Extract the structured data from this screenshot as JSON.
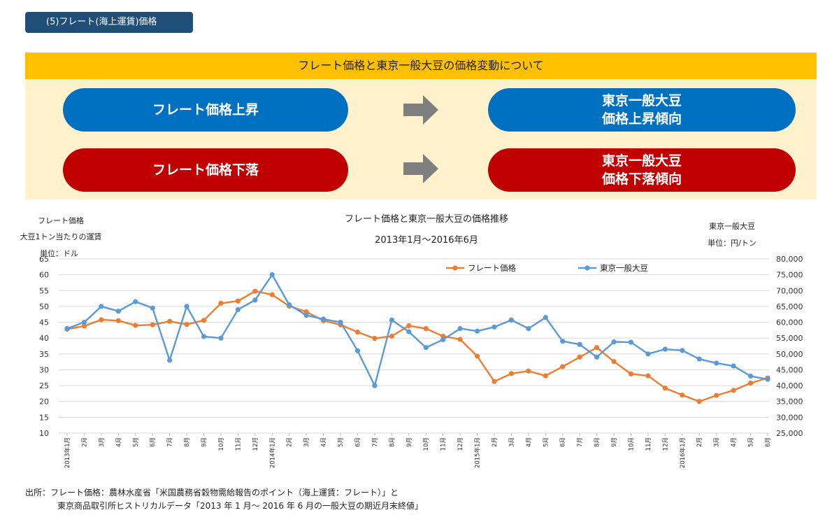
{
  "section_label": "(5)フレート(海上運賃)価格",
  "banner_title": "フレート価格と東京一般大豆の価格変動について",
  "rows": [
    {
      "left": "フレート価格上昇",
      "right1": "東京一般大豆",
      "right2": "価格上昇傾向",
      "color": "#0070c0"
    },
    {
      "left": "フレート価格下落",
      "right1": "東京一般大豆",
      "right2": "価格下落傾向",
      "color": "#c00000"
    }
  ],
  "arrow_icon": "right-arrow-icon",
  "left_axis_header": [
    "フレート価格",
    "大豆1トン当たりの運賃",
    "単位：ドル"
  ],
  "right_axis_header": [
    "東京一般大豆",
    "単位：円/トン"
  ],
  "source_lines": [
    "出所：フレート価格：農林水産省「米国農務省穀物需給報告のポイント（海上運賃：フレート）」と",
    "東京商品取引所ヒストリカルデータ「2013 年 1 月～ 2016 年 6 月の一般大豆の期近月末終値」"
  ],
  "chart_data": {
    "type": "line",
    "title": "フレート価格と東京一般大豆の価格推移",
    "subtitle": "2013年1月～2016年6月",
    "categories": [
      "2013年1月",
      "2月",
      "3月",
      "4月",
      "5月",
      "6月",
      "7月",
      "8月",
      "9月",
      "10月",
      "11月",
      "12月",
      "2014年1月",
      "2月",
      "3月",
      "4月",
      "5月",
      "6月",
      "7月",
      "8月",
      "9月",
      "10月",
      "11月",
      "12月",
      "2015年1月",
      "2月",
      "3月",
      "4月",
      "5月",
      "6月",
      "7月",
      "8月",
      "9月",
      "10月",
      "11月",
      "12月",
      "2016年1月",
      "2月",
      "3月",
      "4月",
      "5月",
      "6月"
    ],
    "y_left": {
      "min": 10,
      "max": 65,
      "step": 5
    },
    "y_right": {
      "min": 25000,
      "max": 80000,
      "step": 5000
    },
    "grid": true,
    "legend_position": "top-right",
    "series": [
      {
        "name": "フレート価格",
        "axis": "left",
        "color": "#ed7d31",
        "values": [
          42.8,
          43.8,
          45.8,
          45.5,
          44.0,
          44.2,
          45.3,
          44.3,
          45.6,
          51.0,
          51.7,
          54.8,
          53.7,
          50.1,
          48.3,
          45.5,
          44.2,
          41.9,
          39.9,
          40.6,
          43.9,
          43.0,
          40.6,
          39.6,
          34.3,
          26.3,
          28.8,
          29.6,
          28.1,
          31.0,
          34.0,
          37.0,
          32.6,
          28.7,
          28.1,
          24.2,
          22.0,
          20.0,
          21.9,
          23.5,
          25.8,
          27.4
        ]
      },
      {
        "name": "東京一般大豆",
        "axis": "right",
        "color": "#5b9bd5",
        "values": [
          58000,
          60000,
          65000,
          63500,
          66500,
          64500,
          48000,
          65000,
          55500,
          55000,
          64000,
          67000,
          75000,
          65500,
          62200,
          61000,
          60000,
          51000,
          40000,
          60700,
          57000,
          52000,
          54500,
          58000,
          57200,
          58500,
          60700,
          58000,
          61500,
          54000,
          53000,
          49000,
          53800,
          53700,
          50000,
          51500,
          51100,
          48400,
          47100,
          46200,
          43000,
          42000
        ]
      }
    ]
  }
}
